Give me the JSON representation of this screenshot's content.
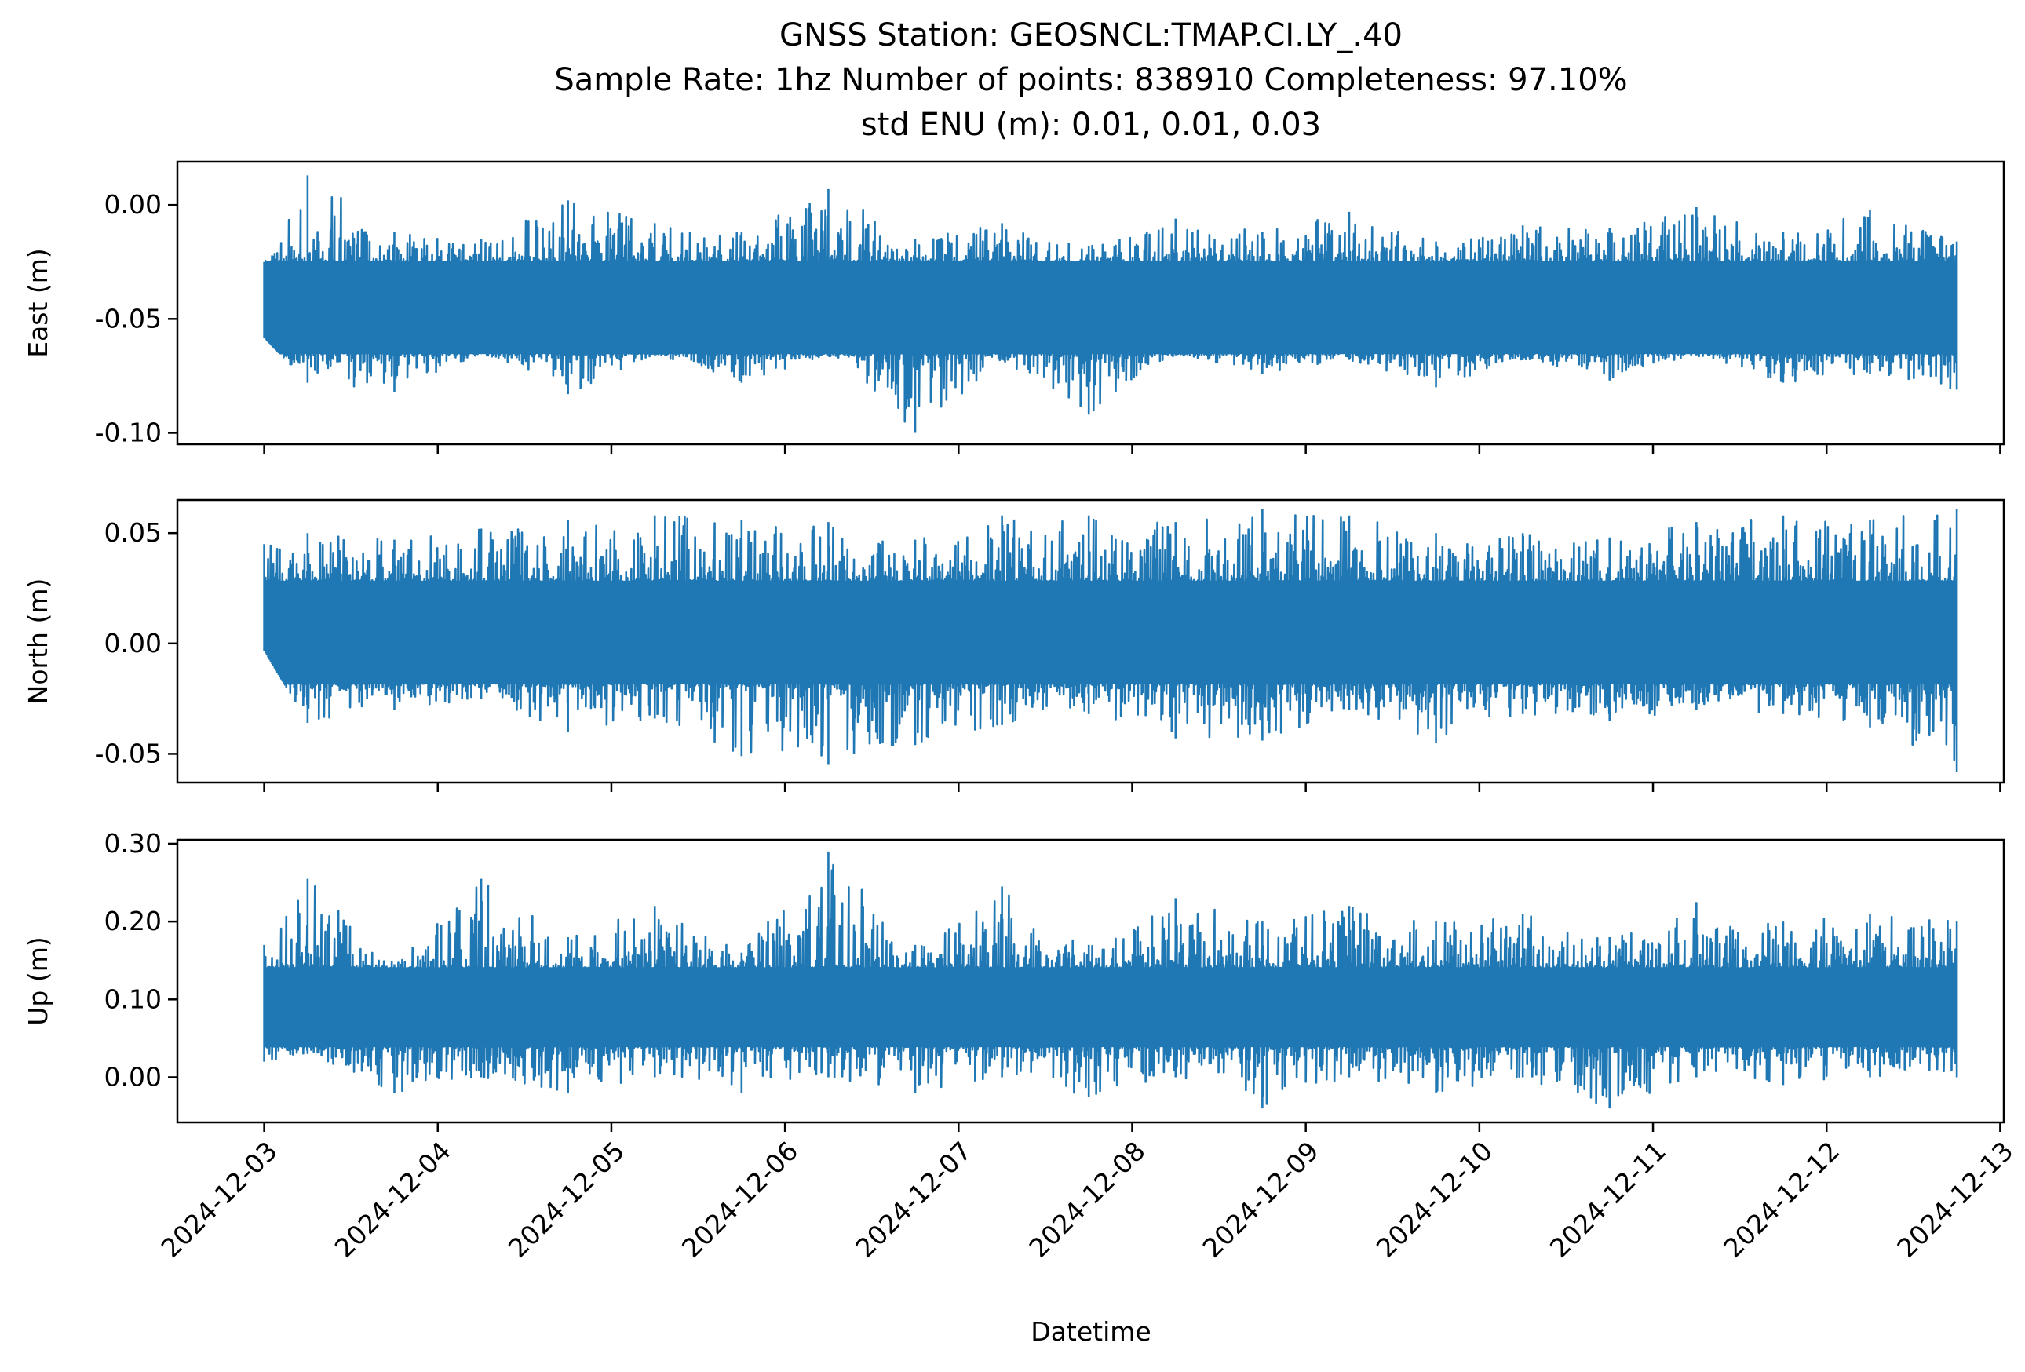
{
  "title_lines": [
    "GNSS Station: GEOSNCL:TMAP.CI.LY_.40",
    "Sample Rate: 1hz   Number of points: 838910    Completeness:  97.10%",
    "std ENU (m):  0.01, 0.01, 0.03"
  ],
  "chart_data": {
    "type": "line",
    "title": "GNSS Station: GEOSNCL:TMAP.CI.LY_.40",
    "xlabel": "Datetime",
    "x_tick_labels": [
      "2024-12-03",
      "2024-12-04",
      "2024-12-05",
      "2024-12-06",
      "2024-12-07",
      "2024-12-08",
      "2024-12-09",
      "2024-12-10",
      "2024-12-11",
      "2024-12-12",
      "2024-12-13"
    ],
    "x_range": [
      "2024-12-02 12:00",
      "2024-12-13 00:30"
    ],
    "data_x_range": [
      "2024-12-03 00:00",
      "2024-12-12 18:00"
    ],
    "series_color": "#1f77b4",
    "sample_rate": "1hz",
    "number_of_points": 838910,
    "completeness": "97.10%",
    "std_enu_m": [
      0.01,
      0.01,
      0.03
    ],
    "subplots": [
      {
        "ylabel": "East (m)",
        "ylim": [
          -0.105,
          0.019
        ],
        "yticks": [
          0.0,
          -0.05,
          -0.1
        ],
        "ytick_labels": [
          "0.00",
          "-0.05",
          "-0.10"
        ],
        "mean": -0.045,
        "band_low": -0.065,
        "band_high": -0.025,
        "max": 0.013,
        "min": -0.1,
        "points": [
          {
            "x": "2024-12-03 00:00",
            "min": -0.058,
            "max": -0.025
          },
          {
            "x": "2024-12-03 06:00",
            "min": -0.078,
            "max": 0.013
          },
          {
            "x": "2024-12-03 18:00",
            "min": -0.082,
            "max": -0.012
          },
          {
            "x": "2024-12-04 06:00",
            "min": -0.065,
            "max": -0.015
          },
          {
            "x": "2024-12-04 18:00",
            "min": -0.083,
            "max": 0.002
          },
          {
            "x": "2024-12-05 06:00",
            "min": -0.066,
            "max": -0.008
          },
          {
            "x": "2024-12-05 18:00",
            "min": -0.078,
            "max": -0.012
          },
          {
            "x": "2024-12-06 06:00",
            "min": -0.066,
            "max": 0.007
          },
          {
            "x": "2024-12-06 18:00",
            "min": -0.1,
            "max": -0.015
          },
          {
            "x": "2024-12-07 06:00",
            "min": -0.068,
            "max": -0.008
          },
          {
            "x": "2024-12-07 18:00",
            "min": -0.092,
            "max": -0.018
          },
          {
            "x": "2024-12-08 06:00",
            "min": -0.066,
            "max": -0.006
          },
          {
            "x": "2024-12-08 18:00",
            "min": -0.074,
            "max": -0.012
          },
          {
            "x": "2024-12-09 06:00",
            "min": -0.068,
            "max": -0.003
          },
          {
            "x": "2024-12-09 18:00",
            "min": -0.08,
            "max": -0.016
          },
          {
            "x": "2024-12-10 06:00",
            "min": -0.068,
            "max": -0.009
          },
          {
            "x": "2024-12-10 18:00",
            "min": -0.077,
            "max": -0.01
          },
          {
            "x": "2024-12-11 06:00",
            "min": -0.066,
            "max": -0.001
          },
          {
            "x": "2024-12-11 18:00",
            "min": -0.078,
            "max": -0.012
          },
          {
            "x": "2024-12-12 06:00",
            "min": -0.074,
            "max": -0.002
          },
          {
            "x": "2024-12-12 18:00",
            "min": -0.081,
            "max": -0.016
          }
        ]
      },
      {
        "ylabel": "North (m)",
        "ylim": [
          -0.063,
          0.065
        ],
        "yticks": [
          0.05,
          0.0,
          -0.05
        ],
        "ytick_labels": [
          "0.05",
          "0.00",
          "-0.05"
        ],
        "mean": 0.005,
        "band_low": -0.018,
        "band_high": 0.028,
        "max": 0.061,
        "min": -0.058,
        "points": [
          {
            "x": "2024-12-03 00:00",
            "min": -0.003,
            "max": 0.045
          },
          {
            "x": "2024-12-03 06:00",
            "min": -0.036,
            "max": 0.05
          },
          {
            "x": "2024-12-03 18:00",
            "min": -0.03,
            "max": 0.047
          },
          {
            "x": "2024-12-04 06:00",
            "min": -0.025,
            "max": 0.052
          },
          {
            "x": "2024-12-04 18:00",
            "min": -0.04,
            "max": 0.056
          },
          {
            "x": "2024-12-05 06:00",
            "min": -0.034,
            "max": 0.058
          },
          {
            "x": "2024-12-05 18:00",
            "min": -0.051,
            "max": 0.056
          },
          {
            "x": "2024-12-06 06:00",
            "min": -0.055,
            "max": 0.055
          },
          {
            "x": "2024-12-06 18:00",
            "min": -0.046,
            "max": 0.047
          },
          {
            "x": "2024-12-07 06:00",
            "min": -0.037,
            "max": 0.058
          },
          {
            "x": "2024-12-07 18:00",
            "min": -0.032,
            "max": 0.058
          },
          {
            "x": "2024-12-08 06:00",
            "min": -0.043,
            "max": 0.055
          },
          {
            "x": "2024-12-08 18:00",
            "min": -0.044,
            "max": 0.061
          },
          {
            "x": "2024-12-09 06:00",
            "min": -0.03,
            "max": 0.058
          },
          {
            "x": "2024-12-09 18:00",
            "min": -0.045,
            "max": 0.05
          },
          {
            "x": "2024-12-10 06:00",
            "min": -0.032,
            "max": 0.05
          },
          {
            "x": "2024-12-10 18:00",
            "min": -0.035,
            "max": 0.048
          },
          {
            "x": "2024-12-11 06:00",
            "min": -0.03,
            "max": 0.055
          },
          {
            "x": "2024-12-11 18:00",
            "min": -0.032,
            "max": 0.058
          },
          {
            "x": "2024-12-12 06:00",
            "min": -0.038,
            "max": 0.056
          },
          {
            "x": "2024-12-12 18:00",
            "min": -0.058,
            "max": 0.061
          }
        ]
      },
      {
        "ylabel": "Up (m)",
        "ylim": [
          -0.058,
          0.305
        ],
        "yticks": [
          0.3,
          0.2,
          0.1,
          0.0
        ],
        "ytick_labels": [
          "0.30",
          "0.20",
          "0.10",
          "0.00"
        ],
        "mean": 0.09,
        "band_low": 0.04,
        "band_high": 0.14,
        "max": 0.29,
        "min": -0.04,
        "points": [
          {
            "x": "2024-12-03 00:00",
            "min": 0.02,
            "max": 0.17
          },
          {
            "x": "2024-12-03 06:00",
            "min": 0.03,
            "max": 0.255
          },
          {
            "x": "2024-12-03 18:00",
            "min": -0.02,
            "max": 0.145
          },
          {
            "x": "2024-12-04 06:00",
            "min": 0.0,
            "max": 0.255
          },
          {
            "x": "2024-12-04 18:00",
            "min": -0.02,
            "max": 0.18
          },
          {
            "x": "2024-12-05 06:00",
            "min": 0.0,
            "max": 0.22
          },
          {
            "x": "2024-12-05 18:00",
            "min": -0.02,
            "max": 0.16
          },
          {
            "x": "2024-12-06 06:00",
            "min": 0.0,
            "max": 0.29
          },
          {
            "x": "2024-12-06 18:00",
            "min": -0.02,
            "max": 0.17
          },
          {
            "x": "2024-12-07 06:00",
            "min": 0.0,
            "max": 0.245
          },
          {
            "x": "2024-12-07 18:00",
            "min": -0.025,
            "max": 0.17
          },
          {
            "x": "2024-12-08 06:00",
            "min": 0.0,
            "max": 0.23
          },
          {
            "x": "2024-12-08 18:00",
            "min": -0.04,
            "max": 0.2
          },
          {
            "x": "2024-12-09 06:00",
            "min": 0.0,
            "max": 0.22
          },
          {
            "x": "2024-12-09 18:00",
            "min": -0.02,
            "max": 0.2
          },
          {
            "x": "2024-12-10 06:00",
            "min": 0.0,
            "max": 0.21
          },
          {
            "x": "2024-12-10 18:00",
            "min": -0.04,
            "max": 0.18
          },
          {
            "x": "2024-12-11 06:00",
            "min": 0.0,
            "max": 0.225
          },
          {
            "x": "2024-12-11 18:00",
            "min": -0.01,
            "max": 0.2
          },
          {
            "x": "2024-12-12 06:00",
            "min": 0.0,
            "max": 0.21
          },
          {
            "x": "2024-12-12 18:00",
            "min": 0.0,
            "max": 0.2
          }
        ]
      }
    ]
  }
}
